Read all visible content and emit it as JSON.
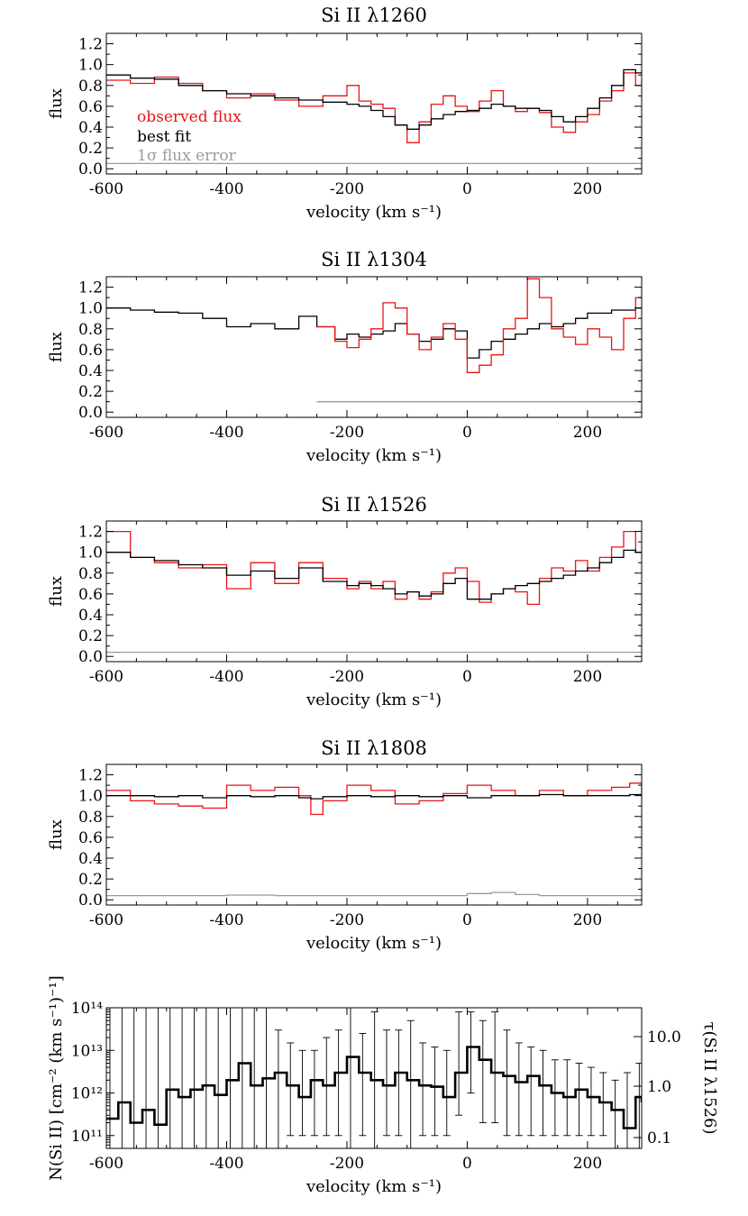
{
  "chart_data": [
    {
      "type": "line",
      "title": "Si II λ1260",
      "xlabel": "velocity (km s⁻¹)",
      "ylabel": "flux",
      "xlim": [
        -600,
        290
      ],
      "ylim": [
        -0.05,
        1.3
      ],
      "xticks": [
        -600,
        -400,
        -200,
        0,
        200
      ],
      "yticks": [
        0.0,
        0.2,
        0.4,
        0.6,
        0.8,
        1.0,
        1.2
      ],
      "legend": [
        "observed flux",
        "best fit",
        "1σ flux error"
      ],
      "legend_colors": [
        "#e81414",
        "#000000",
        "#9a9a9a"
      ],
      "x": [
        -600,
        -560,
        -520,
        -480,
        -440,
        -400,
        -360,
        -320,
        -280,
        -240,
        -200,
        -180,
        -160,
        -140,
        -120,
        -100,
        -80,
        -60,
        -40,
        -20,
        0,
        20,
        40,
        60,
        80,
        100,
        120,
        140,
        160,
        180,
        200,
        220,
        240,
        260,
        280,
        290
      ],
      "series": [
        {
          "name": "observed flux",
          "color": "#e81414",
          "values": [
            0.85,
            0.82,
            0.88,
            0.82,
            0.75,
            0.68,
            0.72,
            0.66,
            0.6,
            0.7,
            0.8,
            0.65,
            0.62,
            0.58,
            0.42,
            0.25,
            0.45,
            0.62,
            0.7,
            0.6,
            0.55,
            0.65,
            0.75,
            0.6,
            0.55,
            0.58,
            0.54,
            0.4,
            0.35,
            0.45,
            0.52,
            0.65,
            0.75,
            0.92,
            0.8,
            0.85
          ]
        },
        {
          "name": "best fit",
          "color": "#000000",
          "values": [
            0.9,
            0.87,
            0.86,
            0.8,
            0.75,
            0.72,
            0.7,
            0.68,
            0.66,
            0.64,
            0.62,
            0.6,
            0.56,
            0.5,
            0.42,
            0.38,
            0.42,
            0.48,
            0.52,
            0.55,
            0.56,
            0.58,
            0.62,
            0.6,
            0.58,
            0.58,
            0.56,
            0.5,
            0.45,
            0.5,
            0.58,
            0.68,
            0.8,
            0.95,
            0.92,
            0.94
          ]
        },
        {
          "name": "1σ flux error",
          "color": "#9a9a9a",
          "values": [
            0.05,
            0.05,
            0.05,
            0.05,
            0.05,
            0.05,
            0.05,
            0.05,
            0.05,
            0.05,
            0.05,
            0.05,
            0.05,
            0.05,
            0.05,
            0.05,
            0.05,
            0.05,
            0.05,
            0.05,
            0.05,
            0.05,
            0.05,
            0.05,
            0.05,
            0.05,
            0.05,
            0.05,
            0.05,
            0.05,
            0.05,
            0.05,
            0.05,
            0.05,
            0.05,
            0.05
          ]
        }
      ]
    },
    {
      "type": "line",
      "title": "Si II λ1304",
      "xlabel": "velocity (km s⁻¹)",
      "ylabel": "flux",
      "xlim": [
        -600,
        290
      ],
      "ylim": [
        -0.05,
        1.3
      ],
      "xticks": [
        -600,
        -400,
        -200,
        0,
        200
      ],
      "yticks": [
        0.0,
        0.2,
        0.4,
        0.6,
        0.8,
        1.0,
        1.2
      ],
      "x": [
        -600,
        -560,
        -520,
        -480,
        -440,
        -400,
        -360,
        -320,
        -280,
        -250,
        -220,
        -200,
        -180,
        -160,
        -140,
        -120,
        -100,
        -80,
        -60,
        -40,
        -20,
        0,
        20,
        40,
        60,
        80,
        100,
        120,
        140,
        160,
        180,
        200,
        220,
        240,
        260,
        280,
        290
      ],
      "series": [
        {
          "name": "best fit",
          "color": "#000000",
          "values": [
            1.0,
            0.98,
            0.96,
            0.95,
            0.9,
            0.82,
            0.85,
            0.8,
            0.92,
            0.82,
            0.7,
            0.75,
            0.72,
            0.75,
            0.78,
            0.85,
            0.75,
            0.68,
            0.7,
            0.8,
            0.78,
            0.52,
            0.6,
            0.68,
            0.7,
            0.75,
            0.8,
            0.85,
            0.82,
            0.85,
            0.9,
            0.95,
            0.95,
            0.98,
            0.98,
            1.0,
            1.0
          ]
        },
        {
          "name": "observed flux",
          "color": "#e81414",
          "values": [
            null,
            null,
            null,
            null,
            null,
            null,
            null,
            null,
            null,
            0.82,
            0.68,
            0.62,
            0.7,
            0.8,
            1.05,
            1.0,
            0.75,
            0.6,
            0.72,
            0.85,
            0.7,
            0.38,
            0.45,
            0.55,
            0.8,
            0.9,
            1.28,
            1.1,
            0.8,
            0.72,
            0.65,
            0.8,
            0.72,
            0.6,
            0.9,
            1.1,
            1.12
          ]
        },
        {
          "name": "1σ flux error",
          "color": "#9a9a9a",
          "values": [
            null,
            null,
            null,
            null,
            null,
            null,
            null,
            null,
            null,
            0.1,
            0.1,
            0.1,
            0.1,
            0.1,
            0.1,
            0.1,
            0.1,
            0.1,
            0.1,
            0.1,
            0.1,
            0.1,
            0.1,
            0.1,
            0.1,
            0.1,
            0.1,
            0.1,
            0.1,
            0.1,
            0.1,
            0.1,
            0.1,
            0.1,
            0.1,
            0.1,
            0.1
          ]
        }
      ]
    },
    {
      "type": "line",
      "title": "Si II λ1526",
      "xlabel": "velocity (km s⁻¹)",
      "ylabel": "flux",
      "xlim": [
        -600,
        290
      ],
      "ylim": [
        -0.05,
        1.3
      ],
      "xticks": [
        -600,
        -400,
        -200,
        0,
        200
      ],
      "yticks": [
        0.0,
        0.2,
        0.4,
        0.6,
        0.8,
        1.0,
        1.2
      ],
      "x": [
        -600,
        -560,
        -520,
        -480,
        -440,
        -400,
        -360,
        -320,
        -280,
        -240,
        -200,
        -180,
        -160,
        -140,
        -120,
        -100,
        -80,
        -60,
        -40,
        -20,
        0,
        20,
        40,
        60,
        80,
        100,
        120,
        140,
        160,
        180,
        200,
        220,
        240,
        260,
        280,
        290
      ],
      "series": [
        {
          "name": "observed flux",
          "color": "#e81414",
          "values": [
            1.2,
            0.95,
            0.9,
            0.85,
            0.88,
            0.65,
            0.9,
            0.7,
            0.9,
            0.75,
            0.65,
            0.72,
            0.65,
            0.72,
            0.55,
            0.62,
            0.55,
            0.62,
            0.8,
            0.85,
            0.72,
            0.52,
            0.6,
            0.65,
            0.62,
            0.5,
            0.75,
            0.85,
            0.82,
            0.92,
            0.82,
            0.95,
            1.05,
            1.2,
            1.0,
            1.0
          ]
        },
        {
          "name": "best fit",
          "color": "#000000",
          "values": [
            1.0,
            0.95,
            0.92,
            0.88,
            0.85,
            0.78,
            0.82,
            0.75,
            0.85,
            0.72,
            0.68,
            0.7,
            0.68,
            0.65,
            0.6,
            0.62,
            0.58,
            0.6,
            0.7,
            0.75,
            0.55,
            0.55,
            0.6,
            0.65,
            0.68,
            0.7,
            0.72,
            0.75,
            0.78,
            0.82,
            0.85,
            0.9,
            0.95,
            1.02,
            1.0,
            1.0
          ]
        },
        {
          "name": "1σ flux error",
          "color": "#9a9a9a",
          "values": [
            0.04,
            0.04,
            0.04,
            0.04,
            0.04,
            0.04,
            0.04,
            0.04,
            0.04,
            0.04,
            0.04,
            0.04,
            0.04,
            0.04,
            0.04,
            0.04,
            0.04,
            0.04,
            0.04,
            0.04,
            0.04,
            0.04,
            0.04,
            0.04,
            0.04,
            0.04,
            0.04,
            0.04,
            0.04,
            0.04,
            0.04,
            0.04,
            0.04,
            0.04,
            0.04,
            0.04
          ]
        }
      ]
    },
    {
      "type": "line",
      "title": "Si II λ1808",
      "xlabel": "velocity (km s⁻¹)",
      "ylabel": "flux",
      "xlim": [
        -600,
        290
      ],
      "ylim": [
        -0.05,
        1.3
      ],
      "xticks": [
        -600,
        -400,
        -200,
        0,
        200
      ],
      "yticks": [
        0.0,
        0.2,
        0.4,
        0.6,
        0.8,
        1.0,
        1.2
      ],
      "x": [
        -600,
        -560,
        -520,
        -480,
        -440,
        -400,
        -360,
        -320,
        -280,
        -260,
        -240,
        -200,
        -160,
        -120,
        -80,
        -40,
        0,
        40,
        80,
        120,
        160,
        200,
        240,
        270,
        290
      ],
      "series": [
        {
          "name": "observed flux",
          "color": "#e81414",
          "values": [
            1.05,
            0.95,
            0.92,
            0.9,
            0.88,
            1.1,
            1.05,
            1.08,
            1.0,
            0.82,
            0.95,
            1.1,
            1.05,
            0.92,
            0.95,
            1.02,
            1.1,
            1.05,
            1.0,
            1.05,
            1.0,
            1.05,
            1.08,
            1.12,
            0.98
          ]
        },
        {
          "name": "best fit",
          "color": "#000000",
          "values": [
            1.0,
            1.0,
            0.99,
            1.0,
            0.98,
            1.0,
            0.99,
            1.0,
            0.98,
            0.97,
            0.99,
            1.0,
            0.99,
            1.0,
            0.99,
            1.0,
            0.98,
            1.0,
            1.0,
            1.01,
            1.0,
            1.0,
            1.0,
            1.01,
            1.0
          ]
        },
        {
          "name": "1σ flux error",
          "color": "#9a9a9a",
          "values": [
            0.04,
            0.04,
            0.04,
            0.04,
            0.04,
            0.045,
            0.045,
            0.04,
            0.04,
            0.04,
            0.04,
            0.04,
            0.04,
            0.04,
            0.04,
            0.04,
            0.06,
            0.07,
            0.05,
            0.04,
            0.04,
            0.04,
            0.04,
            0.04,
            0.04
          ]
        }
      ]
    },
    {
      "type": "line",
      "ylog": true,
      "xlabel": "velocity (km s⁻¹)",
      "ylabel": "N(Si II) [cm⁻² (km s⁻¹)⁻¹]",
      "y2label": "τ(Si II λ1526)",
      "xlim": [
        -600,
        290
      ],
      "ylim": [
        50000000000,
        100000000000000
      ],
      "xticks": [
        -600,
        -400,
        -200,
        0,
        200
      ],
      "ytick_labels": [
        "10¹¹",
        "10¹²",
        "10¹³",
        "10¹⁴"
      ],
      "y2tick_labels": [
        "0.1",
        "1.0",
        "10.0"
      ],
      "x": [
        -600,
        -580,
        -560,
        -540,
        -520,
        -500,
        -480,
        -460,
        -440,
        -420,
        -400,
        -380,
        -360,
        -340,
        -320,
        -300,
        -280,
        -260,
        -240,
        -220,
        -200,
        -180,
        -160,
        -140,
        -120,
        -100,
        -80,
        -60,
        -40,
        -20,
        0,
        20,
        40,
        60,
        80,
        100,
        120,
        140,
        160,
        180,
        200,
        220,
        240,
        260,
        280,
        290
      ],
      "series": [
        {
          "name": "N(Si II)",
          "color": "#000000",
          "values": [
            250000000000.0,
            600000000000.0,
            200000000000.0,
            400000000000.0,
            180000000000.0,
            1200000000000.0,
            800000000000.0,
            1200000000000.0,
            1500000000000.0,
            900000000000.0,
            2000000000000.0,
            5000000000000.0,
            1500000000000.0,
            2200000000000.0,
            3000000000000.0,
            1500000000000.0,
            800000000000.0,
            2000000000000.0,
            1500000000000.0,
            3000000000000.0,
            7000000000000.0,
            3000000000000.0,
            2000000000000.0,
            1500000000000.0,
            3000000000000.0,
            2000000000000.0,
            1500000000000.0,
            1400000000000.0,
            800000000000.0,
            3000000000000.0,
            12000000000000.0,
            6000000000000.0,
            3000000000000.0,
            2500000000000.0,
            1800000000000.0,
            2500000000000.0,
            1500000000000.0,
            1000000000000.0,
            800000000000.0,
            1200000000000.0,
            800000000000.0,
            600000000000.0,
            400000000000.0,
            150000000000.0,
            800000000000.0,
            600000000000.0
          ],
          "err_low": [
            10000000000.0,
            10000000000.0,
            10000000000.0,
            10000000000.0,
            10000000000.0,
            10000000000.0,
            10000000000.0,
            10000000000.0,
            10000000000.0,
            10000000000.0,
            10000000000.0,
            10000000000.0,
            10000000000.0,
            10000000000.0,
            30000000000.0,
            100000000000.0,
            100000000000.0,
            100000000000.0,
            100000000000.0,
            100000000000.0,
            10000000000.0,
            100000000000.0,
            10000000000.0,
            100000000000.0,
            100000000000.0,
            10000000000.0,
            100000000000.0,
            100000000000.0,
            100000000000.0,
            300000000000.0,
            1000000000000.0,
            200000000000.0,
            200000000000.0,
            100000000000.0,
            100000000000.0,
            100000000000.0,
            100000000000.0,
            100000000000.0,
            100000000000.0,
            100000000000.0,
            100000000000.0,
            100000000000.0,
            10000000000.0,
            10000000000.0,
            10000000000.0,
            10000000000.0
          ],
          "err_high": [
            1000000000000000.0,
            1000000000000000.0,
            1000000000000000.0,
            1000000000000000.0,
            1000000000000000.0,
            1000000000000000.0,
            1000000000000000.0,
            1000000000000000.0,
            1000000000000000.0,
            1000000000000000.0,
            1000000000000000.0,
            1000000000000000.0,
            1000000000000000.0,
            1000000000000000.0,
            30000000000000.0,
            15000000000000.0,
            10000000000000.0,
            10000000000000.0,
            20000000000000.0,
            30000000000000.0,
            100000000000000.0,
            25000000000000.0,
            80000000000000.0,
            30000000000000.0,
            30000000000000.0,
            50000000000000.0,
            15000000000000.0,
            12000000000000.0,
            10000000000000.0,
            80000000000000.0,
            80000000000000.0,
            50000000000000.0,
            80000000000000.0,
            30000000000000.0,
            15000000000000.0,
            12000000000000.0,
            10000000000000.0,
            6000000000000.0,
            6000000000000.0,
            5000000000000.0,
            4000000000000.0,
            3000000000000.0,
            2000000000000.0,
            3000000000000.0,
            5000000000000.0,
            2000000000000.0
          ]
        }
      ]
    }
  ]
}
